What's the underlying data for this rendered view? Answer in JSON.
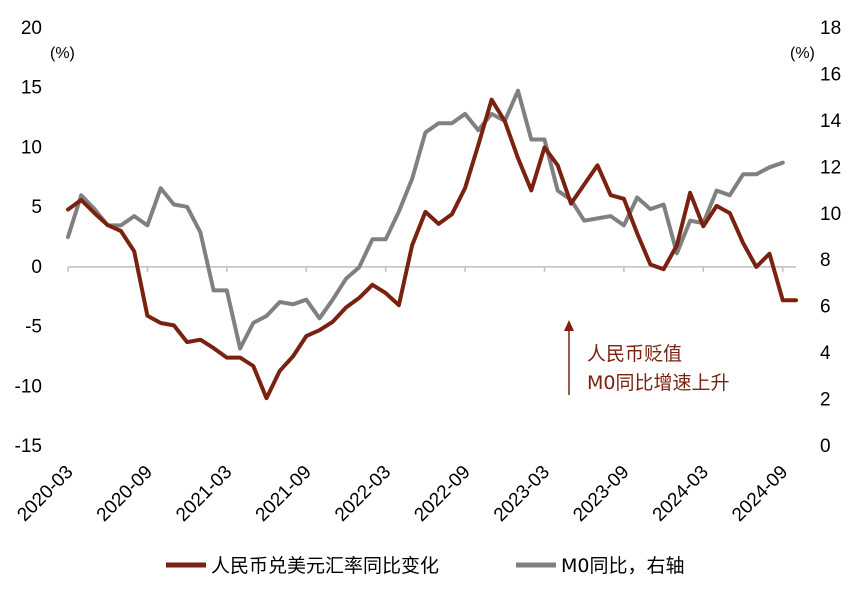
{
  "chart_data": {
    "type": "line",
    "title": "",
    "y_left": {
      "unit_label": "(%)",
      "ylim": [
        -15,
        20
      ],
      "ticks": [
        -15,
        -10,
        -5,
        0,
        5,
        10,
        15,
        20
      ]
    },
    "y_right": {
      "unit_label": "(%)",
      "ylim": [
        0,
        18
      ],
      "ticks": [
        0,
        2,
        4,
        6,
        8,
        10,
        12,
        14,
        16,
        18
      ]
    },
    "x_ticks": [
      "2020-03",
      "2020-09",
      "2021-03",
      "2021-09",
      "2022-03",
      "2022-09",
      "2023-03",
      "2023-09",
      "2024-03",
      "2024-09"
    ],
    "x_range": [
      "2020-03",
      "2024-10"
    ],
    "grid": false,
    "legend_position": "bottom",
    "annotation": {
      "lines": [
        "人民币贬值",
        "M0同比增速上升"
      ],
      "arrow": "up",
      "anchor_x": "2023-05"
    },
    "series": [
      {
        "name": "人民币兑美元汇率同比变化",
        "axis": "left",
        "color": "#7a2210",
        "x": [
          "2020-03",
          "2020-04",
          "2020-05",
          "2020-06",
          "2020-07",
          "2020-08",
          "2020-09",
          "2020-10",
          "2020-11",
          "2020-12",
          "2021-01",
          "2021-02",
          "2021-03",
          "2021-04",
          "2021-05",
          "2021-06",
          "2021-07",
          "2021-08",
          "2021-09",
          "2021-10",
          "2021-11",
          "2021-12",
          "2022-01",
          "2022-02",
          "2022-03",
          "2022-04",
          "2022-05",
          "2022-06",
          "2022-07",
          "2022-08",
          "2022-09",
          "2022-10",
          "2022-11",
          "2022-12",
          "2023-01",
          "2023-02",
          "2023-03",
          "2023-04",
          "2023-05",
          "2023-06",
          "2023-07",
          "2023-08",
          "2023-09",
          "2023-10",
          "2023-11",
          "2023-12",
          "2024-01",
          "2024-02",
          "2024-03",
          "2024-04",
          "2024-05",
          "2024-06",
          "2024-07",
          "2024-08",
          "2024-09",
          "2024-10"
        ],
        "values": [
          4.8,
          5.6,
          4.5,
          3.5,
          3.0,
          1.3,
          -4.1,
          -4.7,
          -4.9,
          -6.3,
          -6.1,
          -6.8,
          -7.6,
          -7.6,
          -8.3,
          -11.0,
          -8.7,
          -7.5,
          -5.8,
          -5.3,
          -4.6,
          -3.4,
          -2.6,
          -1.5,
          -2.2,
          -3.2,
          1.8,
          4.6,
          3.6,
          4.4,
          6.6,
          10.2,
          14.0,
          12.2,
          9.1,
          6.4,
          10.0,
          8.5,
          5.3,
          6.9,
          8.5,
          6.0,
          5.7,
          2.8,
          0.2,
          -0.2,
          1.8,
          6.2,
          3.4,
          5.1,
          4.5,
          2.0,
          0.0,
          1.1,
          -2.8,
          -2.8
        ]
      },
      {
        "name": "M0同比，右轴",
        "axis": "right",
        "color": "#808080",
        "x": [
          "2020-03",
          "2020-04",
          "2020-05",
          "2020-06",
          "2020-07",
          "2020-08",
          "2020-09",
          "2020-10",
          "2020-11",
          "2020-12",
          "2021-01",
          "2021-02",
          "2021-03",
          "2021-04",
          "2021-05",
          "2021-06",
          "2021-07",
          "2021-08",
          "2021-09",
          "2021-10",
          "2021-11",
          "2021-12",
          "2022-01",
          "2022-02",
          "2022-03",
          "2022-04",
          "2022-05",
          "2022-06",
          "2022-07",
          "2022-08",
          "2022-09",
          "2022-10",
          "2022-11",
          "2022-12",
          "2023-01",
          "2023-02",
          "2023-03",
          "2023-04",
          "2023-05",
          "2023-06",
          "2023-07",
          "2023-08",
          "2023-09",
          "2023-10",
          "2023-11",
          "2023-12",
          "2024-01",
          "2024-02",
          "2024-03",
          "2024-04",
          "2024-05",
          "2024-06",
          "2024-07",
          "2024-08",
          "2024-09"
        ],
        "values": [
          9.0,
          10.8,
          10.2,
          9.5,
          9.5,
          9.9,
          9.5,
          11.1,
          10.4,
          10.3,
          9.2,
          6.7,
          6.7,
          4.2,
          5.3,
          5.6,
          6.2,
          6.1,
          6.3,
          5.5,
          6.3,
          7.2,
          7.7,
          8.9,
          8.9,
          10.1,
          11.5,
          13.5,
          13.9,
          13.9,
          14.3,
          13.6,
          14.3,
          14.0,
          15.3,
          13.2,
          13.2,
          11.0,
          10.6,
          9.7,
          9.8,
          9.9,
          9.5,
          10.7,
          10.2,
          10.4,
          8.3,
          9.7,
          9.6,
          11.0,
          10.8,
          11.7,
          11.7,
          12.0,
          12.2
        ]
      }
    ]
  }
}
